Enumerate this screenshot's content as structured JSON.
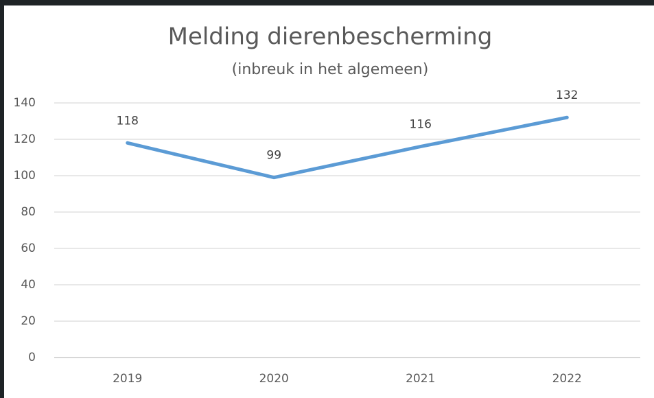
{
  "chart_data": {
    "type": "line",
    "title": "Melding dierenbescherming",
    "subtitle": "(inbreuk in het algemeen)",
    "categories": [
      "2019",
      "2020",
      "2021",
      "2022"
    ],
    "series": [
      {
        "name": "Melding dierenbescherming",
        "color": "#5b9bd5",
        "values": [
          118,
          99,
          116,
          132
        ]
      }
    ],
    "ylim": [
      0,
      140
    ],
    "yticks": [
      0,
      20,
      40,
      60,
      80,
      100,
      120,
      140
    ],
    "grid": true
  }
}
